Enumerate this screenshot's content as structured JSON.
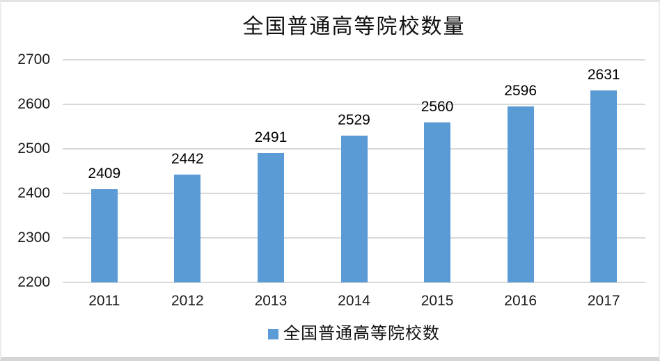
{
  "chart_data": {
    "type": "bar",
    "title": "全国普通高等院校数量",
    "categories": [
      "2011",
      "2012",
      "2013",
      "2014",
      "2015",
      "2016",
      "2017"
    ],
    "values": [
      2409,
      2442,
      2491,
      2529,
      2560,
      2596,
      2631
    ],
    "series_name": "全国普通高等院校数",
    "legend": "全国普通高等院校数",
    "legend_position": "bottom",
    "xlabel": "",
    "ylabel": "",
    "ylim": [
      2200,
      2700
    ],
    "yticks": [
      2200,
      2300,
      2400,
      2500,
      2600,
      2700
    ],
    "grid": true,
    "bar_color": "#5B9BD5",
    "gridline_color": "#d9d9d9",
    "text_color": "#1a1a1a"
  }
}
